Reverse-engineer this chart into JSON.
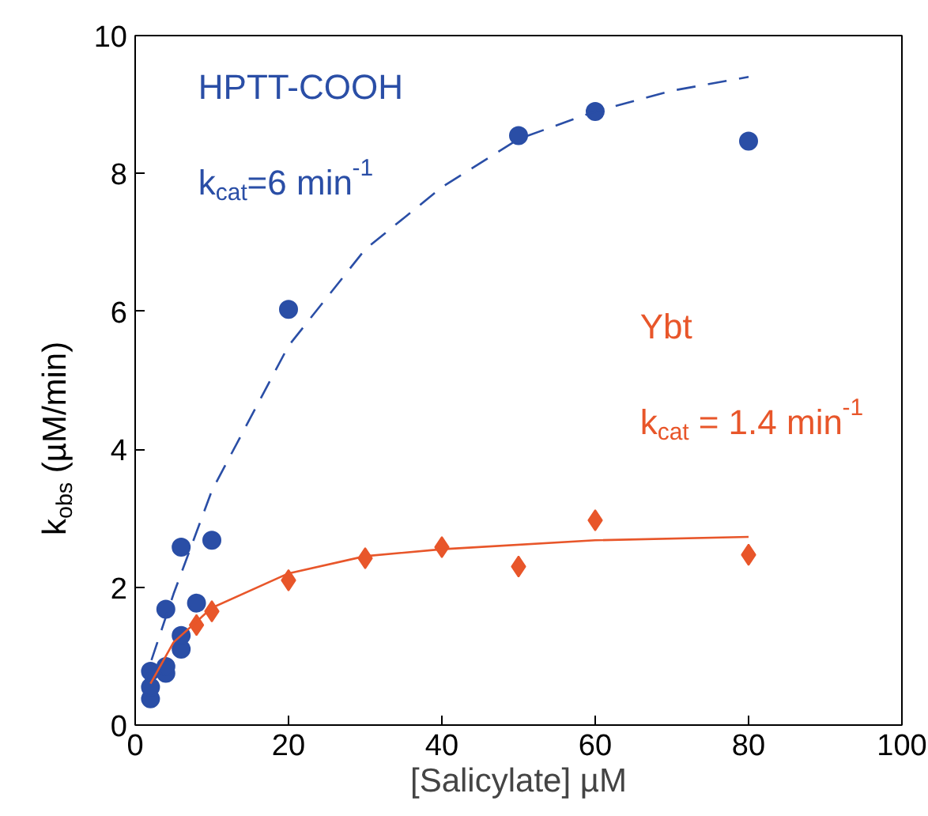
{
  "chart_data": {
    "type": "scatter",
    "xlabel": "[Salicylate] µM",
    "ylabel": "k$_{obs}$ (µM/min)",
    "xlim": [
      0,
      100
    ],
    "ylim": [
      0,
      10
    ],
    "xticks": [
      0,
      20,
      40,
      60,
      80,
      100
    ],
    "yticks": [
      0,
      2,
      4,
      6,
      8,
      10
    ],
    "grid": false,
    "legend": false,
    "series": [
      {
        "name": "HPTT-COOH",
        "color": "#2a4ea6",
        "marker": "circle",
        "x": [
          2,
          2,
          2,
          4,
          4,
          4,
          6,
          6,
          6,
          8,
          10,
          20,
          50,
          60,
          80
        ],
        "values": [
          0.38,
          0.55,
          0.78,
          0.75,
          0.85,
          1.68,
          1.1,
          1.3,
          2.58,
          1.77,
          2.68,
          6.03,
          8.55,
          8.9,
          8.47
        ]
      },
      {
        "name": "Ybt",
        "color": "#e8562a",
        "marker": "diamond",
        "x": [
          8,
          10,
          20,
          30,
          40,
          50,
          60,
          80
        ],
        "values": [
          1.45,
          1.65,
          2.1,
          2.42,
          2.58,
          2.3,
          2.97,
          2.47
        ]
      },
      {
        "type": "line",
        "color": "#2a4ea6",
        "line_style": "dashed",
        "x": [
          1,
          2,
          5,
          10,
          20,
          30,
          40,
          50,
          60,
          70,
          80
        ],
        "values": [
          0.5,
          0.9,
          1.9,
          3.4,
          5.5,
          6.9,
          7.8,
          8.5,
          8.9,
          9.2,
          9.4
        ]
      },
      {
        "type": "line",
        "color": "#e8562a",
        "line_style": "solid",
        "x": [
          2,
          5,
          8,
          10,
          20,
          30,
          40,
          60,
          80
        ],
        "values": [
          0.6,
          1.2,
          1.5,
          1.7,
          2.2,
          2.45,
          2.55,
          2.68,
          2.73
        ]
      }
    ],
    "annotations": [
      "k$_{cat}$=6 min$^{-1}$",
      "k$_{cat}$ = 1.4 min$^{-1}$"
    ]
  }
}
